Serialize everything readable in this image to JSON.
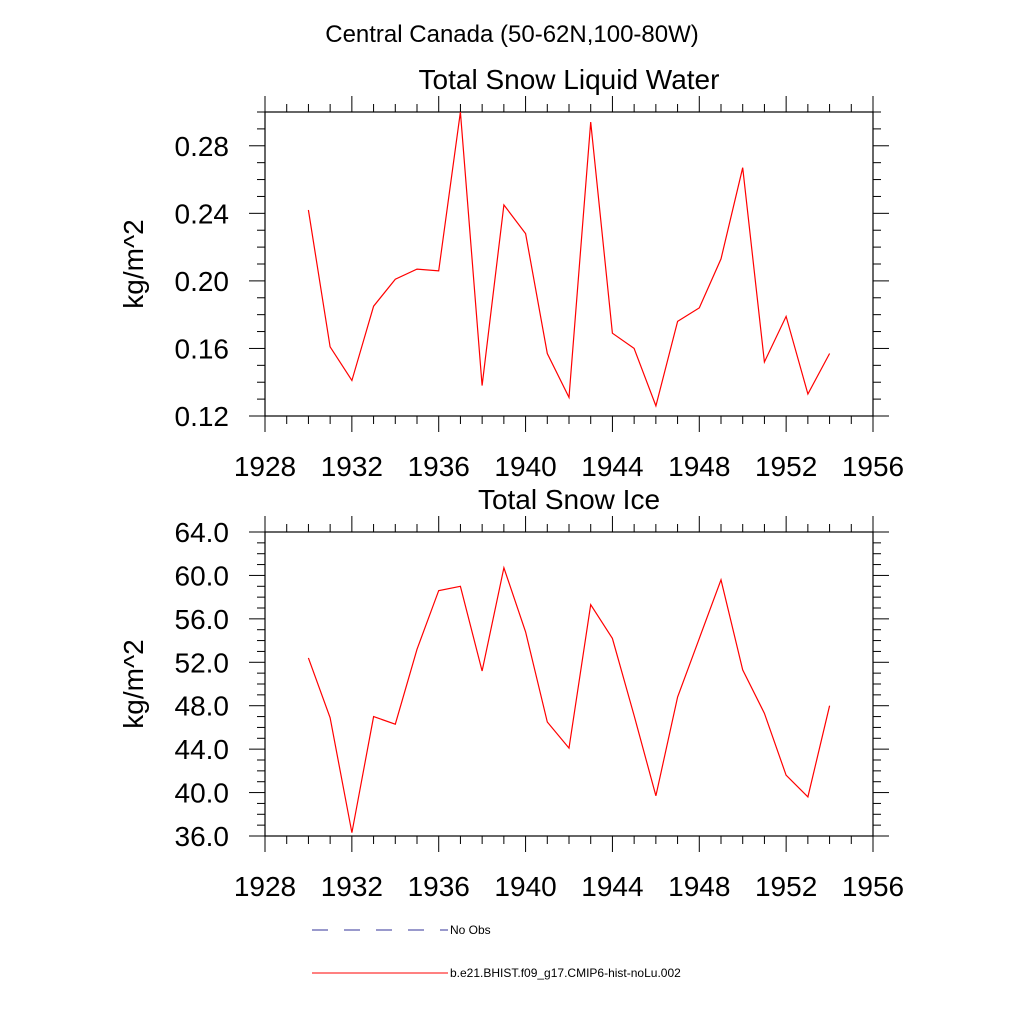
{
  "figure_title": "Central Canada (50-62N,100-80W)",
  "colors": {
    "model": "#ff0000",
    "obs": "#333399",
    "axis": "#000000"
  },
  "legend": [
    {
      "label": "No Obs",
      "style": "dashed",
      "color": "#333399"
    },
    {
      "label": "b.e21.BHIST.f09_g17.CMIP6-hist-noLu.002",
      "style": "solid",
      "color": "#ff0000"
    }
  ],
  "chart_data": [
    {
      "type": "line",
      "title": "Total Snow Liquid Water",
      "xlabel": "",
      "ylabel": "kg/m^2",
      "xlim": [
        1928,
        1956
      ],
      "ylim": [
        0.12,
        0.3
      ],
      "xticks": [
        1928,
        1932,
        1936,
        1940,
        1944,
        1948,
        1952,
        1956
      ],
      "yticks": [
        0.12,
        0.16,
        0.2,
        0.24,
        0.28
      ],
      "ytick_labels": [
        "0.12",
        "0.16",
        "0.20",
        "0.24",
        "0.28"
      ],
      "x": [
        1930,
        1931,
        1932,
        1933,
        1934,
        1935,
        1936,
        1937,
        1938,
        1939,
        1940,
        1941,
        1942,
        1943,
        1944,
        1945,
        1946,
        1947,
        1948,
        1949,
        1950,
        1951,
        1952,
        1953,
        1954
      ],
      "series": [
        {
          "name": "b.e21.BHIST.f09_g17.CMIP6-hist-noLu.002",
          "values": [
            0.242,
            0.161,
            0.141,
            0.185,
            0.201,
            0.207,
            0.206,
            0.3,
            0.138,
            0.245,
            0.228,
            0.157,
            0.131,
            0.294,
            0.169,
            0.16,
            0.126,
            0.176,
            0.184,
            0.213,
            0.267,
            0.152,
            0.179,
            0.133,
            0.157
          ]
        }
      ],
      "grid": false
    },
    {
      "type": "line",
      "title": "Total Snow Ice",
      "xlabel": "",
      "ylabel": "kg/m^2",
      "xlim": [
        1928,
        1956
      ],
      "ylim": [
        36.0,
        64.0
      ],
      "xticks": [
        1928,
        1932,
        1936,
        1940,
        1944,
        1948,
        1952,
        1956
      ],
      "yticks": [
        36,
        40,
        44,
        48,
        52,
        56,
        60,
        64
      ],
      "ytick_labels": [
        "36.0",
        "40.0",
        "44.0",
        "48.0",
        "52.0",
        "56.0",
        "60.0",
        "64.0"
      ],
      "x": [
        1930,
        1931,
        1932,
        1933,
        1934,
        1935,
        1936,
        1937,
        1938,
        1939,
        1940,
        1941,
        1942,
        1943,
        1944,
        1945,
        1946,
        1947,
        1948,
        1949,
        1950,
        1951,
        1952,
        1953,
        1954
      ],
      "series": [
        {
          "name": "b.e21.BHIST.f09_g17.CMIP6-hist-noLu.002",
          "values": [
            52.4,
            46.9,
            36.3,
            47.0,
            46.3,
            53.2,
            58.6,
            59.0,
            51.2,
            60.7,
            54.8,
            46.5,
            44.1,
            57.3,
            54.2,
            47.1,
            39.7,
            48.8,
            54.2,
            59.6,
            51.3,
            47.3,
            41.6,
            39.6,
            48.0
          ]
        }
      ],
      "grid": false
    }
  ]
}
